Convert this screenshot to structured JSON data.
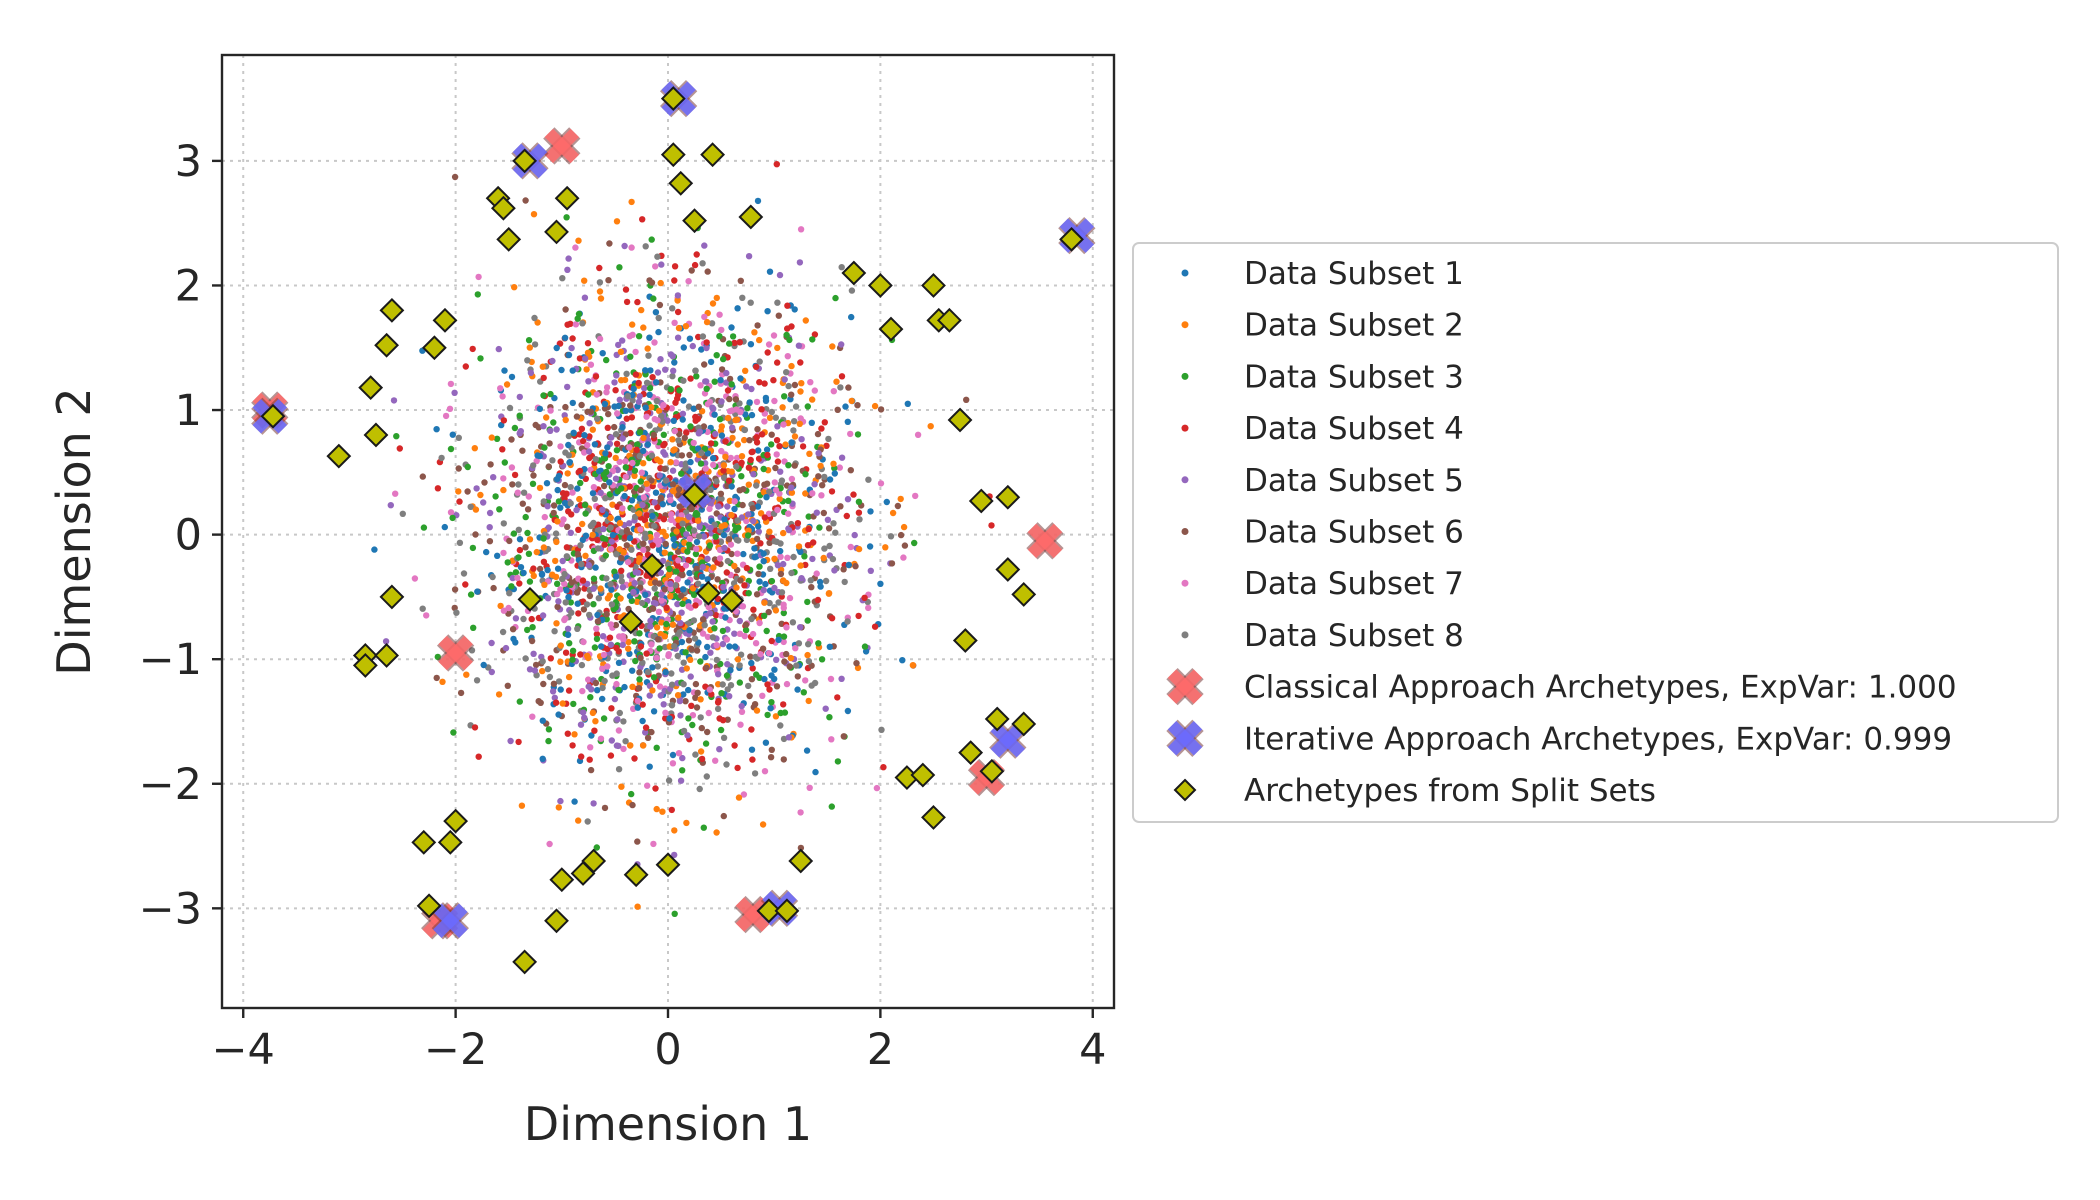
{
  "chart_data": {
    "type": "scatter",
    "title": "",
    "xlabel": "Dimension 1",
    "ylabel": "Dimension 2",
    "xlim": [
      -4.2,
      4.2
    ],
    "ylim": [
      -3.8,
      3.85
    ],
    "xticks": [
      -4,
      -2,
      0,
      2,
      4
    ],
    "yticks": [
      -3,
      -2,
      -1,
      0,
      1,
      2,
      3
    ],
    "grid": true,
    "legend_position": "right",
    "point_cloud": {
      "mean": [
        0,
        0
      ],
      "std": [
        0.85,
        0.9
      ],
      "points_per_subset": 380
    },
    "series": [
      {
        "name": "Data Subset 1",
        "color": "#1f77b4",
        "marker": "dot"
      },
      {
        "name": "Data Subset 2",
        "color": "#ff7f0e",
        "marker": "dot"
      },
      {
        "name": "Data Subset 3",
        "color": "#2ca02c",
        "marker": "dot"
      },
      {
        "name": "Data Subset 4",
        "color": "#d62728",
        "marker": "dot"
      },
      {
        "name": "Data Subset 5",
        "color": "#9467bd",
        "marker": "dot"
      },
      {
        "name": "Data Subset 6",
        "color": "#8c564b",
        "marker": "dot"
      },
      {
        "name": "Data Subset 7",
        "color": "#e377c2",
        "marker": "dot"
      },
      {
        "name": "Data Subset 8",
        "color": "#7f7f7f",
        "marker": "dot"
      },
      {
        "name": "Classical Approach Archetypes, ExpVar: 1.000",
        "color": "#ff6b6b",
        "marker": "x",
        "points": [
          [
            -1.0,
            3.12
          ],
          [
            -3.75,
            1.0
          ],
          [
            3.55,
            -0.05
          ],
          [
            -2.0,
            -0.95
          ],
          [
            3.0,
            -1.95
          ],
          [
            -2.15,
            -3.1
          ],
          [
            0.8,
            -3.05
          ]
        ]
      },
      {
        "name": "Iterative Approach Archetypes, ExpVar: 0.999",
        "color": "#6b6bff",
        "marker": "x",
        "points": [
          [
            0.1,
            3.5
          ],
          [
            -1.3,
            3.0
          ],
          [
            3.85,
            2.4
          ],
          [
            -3.75,
            0.95
          ],
          [
            0.25,
            0.35
          ],
          [
            3.2,
            -1.65
          ],
          [
            -2.05,
            -3.1
          ],
          [
            1.05,
            -3.0
          ]
        ]
      },
      {
        "name": "Archetypes from Split Sets",
        "color": "#bfbf00",
        "marker": "diamond",
        "points": [
          [
            0.05,
            3.5
          ],
          [
            0.05,
            3.05
          ],
          [
            0.42,
            3.05
          ],
          [
            0.12,
            2.82
          ],
          [
            -1.35,
            3.0
          ],
          [
            -1.6,
            2.7
          ],
          [
            -1.55,
            2.62
          ],
          [
            -0.95,
            2.7
          ],
          [
            -1.5,
            2.37
          ],
          [
            -1.05,
            2.43
          ],
          [
            0.25,
            2.52
          ],
          [
            0.78,
            2.55
          ],
          [
            3.8,
            2.37
          ],
          [
            1.75,
            2.1
          ],
          [
            2.0,
            2.0
          ],
          [
            2.5,
            2.0
          ],
          [
            2.1,
            1.65
          ],
          [
            2.55,
            1.72
          ],
          [
            2.65,
            1.72
          ],
          [
            -2.6,
            1.8
          ],
          [
            -2.1,
            1.72
          ],
          [
            -2.2,
            1.5
          ],
          [
            -2.65,
            1.52
          ],
          [
            -2.8,
            1.18
          ],
          [
            -3.72,
            0.95
          ],
          [
            -2.75,
            0.8
          ],
          [
            -3.1,
            0.63
          ],
          [
            2.75,
            0.92
          ],
          [
            0.25,
            0.32
          ],
          [
            2.95,
            0.27
          ],
          [
            3.2,
            0.3
          ],
          [
            3.2,
            -0.28
          ],
          [
            3.35,
            -0.48
          ],
          [
            -1.3,
            -0.52
          ],
          [
            -2.6,
            -0.5
          ],
          [
            -0.15,
            -0.25
          ],
          [
            0.38,
            -0.47
          ],
          [
            0.6,
            -0.53
          ],
          [
            -0.35,
            -0.7
          ],
          [
            2.8,
            -0.85
          ],
          [
            -2.85,
            -0.97
          ],
          [
            -2.65,
            -0.97
          ],
          [
            -2.85,
            -1.05
          ],
          [
            3.1,
            -1.48
          ],
          [
            3.35,
            -1.52
          ],
          [
            2.85,
            -1.75
          ],
          [
            3.05,
            -1.9
          ],
          [
            2.25,
            -1.95
          ],
          [
            2.4,
            -1.93
          ],
          [
            2.5,
            -2.27
          ],
          [
            -2.0,
            -2.3
          ],
          [
            -2.3,
            -2.47
          ],
          [
            -2.05,
            -2.47
          ],
          [
            -0.7,
            -2.62
          ],
          [
            -0.8,
            -2.72
          ],
          [
            -1.0,
            -2.77
          ],
          [
            -0.3,
            -2.73
          ],
          [
            0.0,
            -2.65
          ],
          [
            1.25,
            -2.62
          ],
          [
            -2.25,
            -2.98
          ],
          [
            0.95,
            -3.02
          ],
          [
            1.12,
            -3.02
          ],
          [
            -1.05,
            -3.1
          ],
          [
            -1.35,
            -3.43
          ]
        ]
      }
    ]
  }
}
